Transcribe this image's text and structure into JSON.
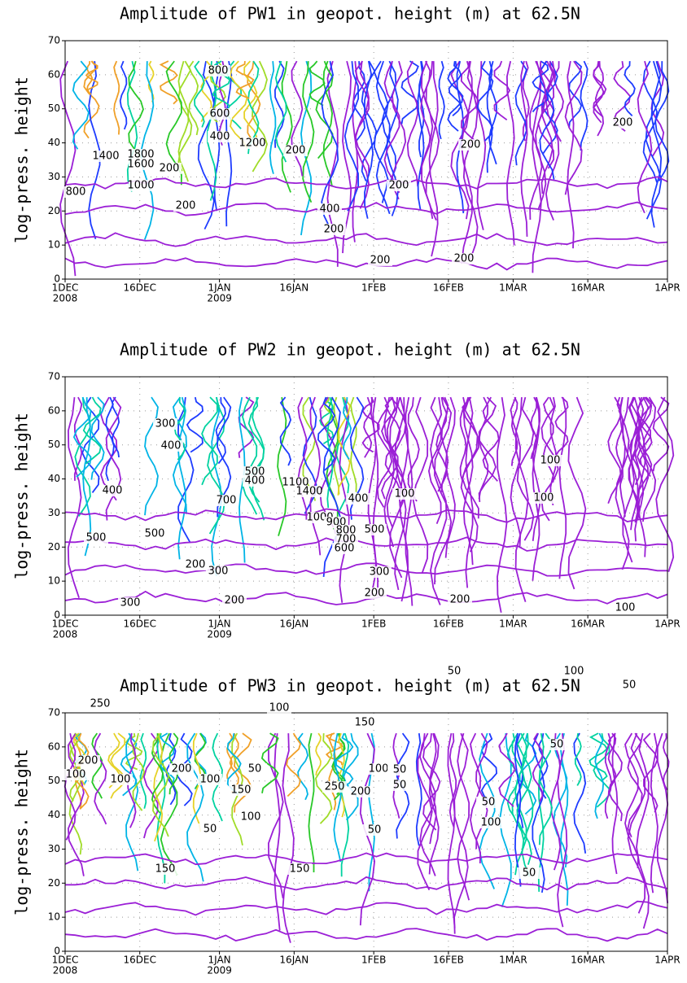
{
  "chart_data": [
    {
      "type": "contour",
      "title": "Amplitude of PW1 in geopot. height (m) at 62.5N",
      "ylabel": "log-press. height",
      "categories": [
        "1DEC",
        "16DEC",
        "1JAN",
        "16JAN",
        "1FEB",
        "16FEB",
        "1MAR",
        "16MAR",
        "1APR"
      ],
      "year_labels": [
        "2008",
        null,
        "2009",
        null,
        null,
        null,
        null,
        null,
        null
      ],
      "ylim": [
        0,
        70
      ],
      "yticks": [
        0,
        10,
        20,
        30,
        40,
        50,
        60,
        70
      ],
      "grid": true,
      "contour_labels": [
        800,
        600,
        400,
        1200,
        200,
        1400,
        1800,
        1600,
        200,
        1000,
        800,
        200,
        400,
        200,
        200,
        200,
        200,
        200,
        200
      ]
    },
    {
      "type": "contour",
      "title": "Amplitude of PW2 in geopot. height (m) at 62.5N",
      "ylabel": "log-press. height",
      "categories": [
        "1DEC",
        "16DEC",
        "1JAN",
        "16JAN",
        "1FEB",
        "16FEB",
        "1MAR",
        "16MAR",
        "1APR"
      ],
      "year_labels": [
        "2008",
        null,
        "2009",
        null,
        null,
        null,
        null,
        null,
        null
      ],
      "ylim": [
        0,
        70
      ],
      "yticks": [
        0,
        10,
        20,
        30,
        40,
        50,
        60,
        70
      ],
      "grid": true,
      "contour_labels": [
        300,
        400,
        500,
        400,
        1100,
        1400,
        400,
        400,
        100,
        100,
        100,
        700,
        1000,
        900,
        800,
        700,
        600,
        500,
        500,
        500,
        200,
        300,
        300,
        200,
        200,
        300,
        200,
        100
      ]
    },
    {
      "type": "contour",
      "title": "Amplitude of PW3 in geopot. height (m) at 62.5N",
      "ylabel": "log-press. height",
      "categories": [
        "1DEC",
        "16DEC",
        "1JAN",
        "16JAN",
        "1FEB",
        "16FEB",
        "1MAR",
        "16MAR",
        "1APR"
      ],
      "year_labels": [
        "2008",
        null,
        "2009",
        null,
        null,
        null,
        null,
        null,
        null
      ],
      "ylim": [
        0,
        70
      ],
      "yticks": [
        0,
        10,
        20,
        30,
        40,
        50,
        60,
        70
      ],
      "grid": true,
      "contour_labels": [
        50,
        100,
        50,
        250,
        100,
        150,
        50,
        200,
        100,
        100,
        200,
        50,
        100,
        150,
        100,
        50,
        50,
        250,
        200,
        50,
        100,
        100,
        50,
        50,
        150,
        150,
        50
      ]
    }
  ]
}
